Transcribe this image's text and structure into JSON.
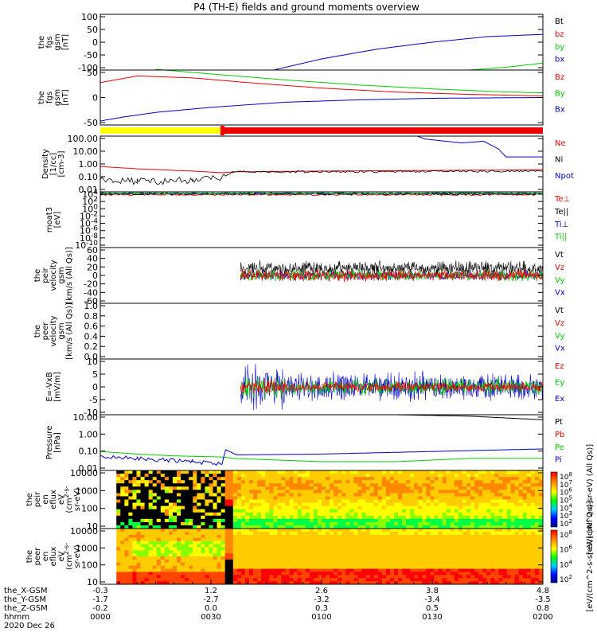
{
  "colors": {
    "black": "#000000",
    "red": "#ee0000",
    "green": "#00cc00",
    "blue": "#0000cc",
    "yellow": "#ffff00",
    "bar_red": "#ee0000"
  },
  "chart_data": {
    "type": "line",
    "title": "P4 (TH-E) fields and ground moments overview",
    "x_range_minutes": [
      0,
      120
    ],
    "mode_bar": {
      "segments": [
        {
          "start_min": 0,
          "end_min": 33,
          "color": "yellow",
          "meaning": "slow survey"
        },
        {
          "start_min": 33,
          "end_min": 120,
          "color": "red",
          "meaning": "fast survey"
        }
      ]
    },
    "panels": [
      {
        "id": "fgs_gsm",
        "ylabel": [
          "the",
          "fgs",
          "gsm",
          "[nT]"
        ],
        "yticks": [
          "100",
          "50",
          "0",
          "-50",
          "-100"
        ],
        "ylim": [
          -100,
          100
        ],
        "legend": [
          {
            "label": "Bt",
            "color": "black"
          },
          {
            "label": "bz",
            "color": "red"
          },
          {
            "label": "by",
            "color": "green"
          },
          {
            "label": "bx",
            "color": "blue"
          }
        ],
        "series": [
          {
            "name": "bx",
            "color": "blue",
            "points": [
              [
                47,
                -100
              ],
              [
                60,
                -60
              ],
              [
                75,
                -25
              ],
              [
                90,
                0
              ],
              [
                105,
                20
              ],
              [
                120,
                28
              ]
            ]
          },
          {
            "name": "by",
            "color": "green",
            "points": [
              [
                100,
                -100
              ],
              [
                110,
                -90
              ],
              [
                120,
                -75
              ]
            ]
          }
        ]
      },
      {
        "id": "fgs_gsm_dsl",
        "ylabel": [
          "the",
          "fgs",
          "gsm",
          "[nT]"
        ],
        "yticks": [
          "50",
          "0",
          "-50"
        ],
        "ylim": [
          -70,
          70
        ],
        "legend": [
          {
            "label": "Bz",
            "color": "red"
          },
          {
            "label": "By",
            "color": "green"
          },
          {
            "label": "Bx",
            "color": "blue"
          }
        ],
        "series": [
          {
            "name": "Bz",
            "color": "red",
            "points": [
              [
                0,
                38
              ],
              [
                10,
                55
              ],
              [
                25,
                50
              ],
              [
                40,
                38
              ],
              [
                60,
                24
              ],
              [
                80,
                14
              ],
              [
                100,
                8
              ],
              [
                120,
                4
              ]
            ]
          },
          {
            "name": "By",
            "color": "green",
            "points": [
              [
                15,
                72
              ],
              [
                30,
                60
              ],
              [
                50,
                45
              ],
              [
                70,
                32
              ],
              [
                90,
                22
              ],
              [
                110,
                14
              ],
              [
                120,
                12
              ]
            ]
          },
          {
            "name": "Bx",
            "color": "blue",
            "points": [
              [
                0,
                -60
              ],
              [
                6,
                -50
              ],
              [
                15,
                -38
              ],
              [
                30,
                -25
              ],
              [
                50,
                -12
              ],
              [
                70,
                -6
              ],
              [
                90,
                -2
              ],
              [
                120,
                0
              ]
            ]
          }
        ]
      },
      {
        "id": "density",
        "ylabel": [
          "Density",
          "[1/cc]",
          "[cm-3]"
        ],
        "yticks": [
          "100.00",
          "10.00",
          "1.00",
          "0.10",
          "0.01"
        ],
        "yscale": "log",
        "ylim": [
          0.01,
          200
        ],
        "legend": [
          {
            "label": "Ne",
            "color": "red"
          },
          {
            "label": "Ni",
            "color": "black"
          },
          {
            "label": "Npot",
            "color": "blue"
          }
        ],
        "series": [
          {
            "name": "Ne",
            "color": "red",
            "points": [
              [
                0,
                0.9
              ],
              [
                10,
                0.6
              ],
              [
                25,
                0.4
              ],
              [
                33,
                0.3
              ],
              [
                36,
                0.35
              ],
              [
                60,
                0.4
              ],
              [
                90,
                0.45
              ],
              [
                120,
                0.5
              ]
            ]
          },
          {
            "name": "Ni",
            "color": "black",
            "points": [
              [
                0,
                0.1
              ],
              [
                10,
                0.06
              ],
              [
                25,
                0.08
              ],
              [
                33,
                0.12
              ],
              [
                36,
                0.35
              ],
              [
                60,
                0.35
              ],
              [
                90,
                0.38
              ],
              [
                120,
                0.4
              ]
            ]
          },
          {
            "name": "Npot",
            "color": "blue",
            "points": [
              [
                86,
                200
              ],
              [
                88,
                120
              ],
              [
                92,
                90
              ],
              [
                98,
                60
              ],
              [
                104,
                80
              ],
              [
                108,
                20
              ],
              [
                110,
                5
              ],
              [
                120,
                5
              ]
            ]
          }
        ]
      },
      {
        "id": "temperature",
        "ylabel": [
          "moat3",
          "[eV]"
        ],
        "yticks": [
          "10^4",
          "10^2",
          "10^0",
          "10^-2",
          "10^-4",
          "10^-6",
          "10^-8",
          "10^-10"
        ],
        "yscale": "log",
        "legend": [
          {
            "label": "Te⊥",
            "color": "red"
          },
          {
            "label": "Te||",
            "color": "black"
          },
          {
            "label": "Ti⊥",
            "color": "blue"
          },
          {
            "label": "Ti||",
            "color": "green"
          }
        ],
        "series": [
          {
            "name": "Te⊥",
            "color": "red",
            "points": [
              [
                0,
                2000
              ],
              [
                120,
                2000
              ]
            ]
          },
          {
            "name": "Te||",
            "color": "black",
            "points": [
              [
                0,
                3000
              ],
              [
                120,
                3000
              ]
            ]
          },
          {
            "name": "Ti⊥",
            "color": "blue",
            "points": [
              [
                0,
                4000
              ],
              [
                120,
                4000
              ]
            ]
          },
          {
            "name": "Ti||",
            "color": "green",
            "points": [
              [
                0,
                5000
              ],
              [
                120,
                5000
              ]
            ]
          }
        ]
      },
      {
        "id": "peir_velocity",
        "ylabel": [
          "the",
          "peir",
          "velocity",
          "gsm",
          "[km/s (All Qs)]"
        ],
        "yticks": [
          "60",
          "40",
          "20",
          "0",
          "-20",
          "-40",
          "-60"
        ],
        "ylim": [
          -60,
          60
        ],
        "legend": [
          {
            "label": "Vt",
            "color": "black"
          },
          {
            "label": "Vz",
            "color": "red"
          },
          {
            "label": "Vy",
            "color": "green"
          },
          {
            "label": "Vx",
            "color": "blue"
          }
        ],
        "noisy_series": [
          {
            "name": "Vt",
            "color": "black",
            "start_min": 38,
            "end_min": 120,
            "center": 15,
            "amp": 18
          },
          {
            "name": "Vx",
            "color": "blue",
            "start_min": 38,
            "end_min": 120,
            "center": 0,
            "amp": 12
          },
          {
            "name": "Vy",
            "color": "green",
            "start_min": 38,
            "end_min": 120,
            "center": 0,
            "amp": 14
          },
          {
            "name": "Vz",
            "color": "red",
            "start_min": 38,
            "end_min": 120,
            "center": 0,
            "amp": 14
          }
        ]
      },
      {
        "id": "peer_velocity",
        "ylabel": [
          "the",
          "peer",
          "velocity",
          "gsm",
          "[km/s (All Qs)]"
        ],
        "yticks": [
          "1.0",
          "0.8",
          "0.6",
          "0.4",
          "0.2",
          "0.0"
        ],
        "ylim": [
          0,
          1
        ],
        "legend": [
          {
            "label": "Vt",
            "color": "black"
          },
          {
            "label": "Vz",
            "color": "red"
          },
          {
            "label": "Vy",
            "color": "green"
          },
          {
            "label": "Vx",
            "color": "blue"
          }
        ],
        "series": []
      },
      {
        "id": "efield",
        "ylabel": [
          "E=-VxB",
          "[mV/m]"
        ],
        "yticks": [
          "10",
          "5",
          "0",
          "-5",
          "-10"
        ],
        "ylim": [
          -12,
          12
        ],
        "legend": [
          {
            "label": "Ez",
            "color": "red"
          },
          {
            "label": "Ey",
            "color": "green"
          },
          {
            "label": "Ex",
            "color": "blue"
          }
        ],
        "noisy_series": [
          {
            "name": "Ex",
            "color": "blue",
            "start_min": 38,
            "end_min": 120,
            "center": 0,
            "amp": 7
          },
          {
            "name": "Ey",
            "color": "green",
            "start_min": 38,
            "end_min": 120,
            "center": 0,
            "amp": 4
          },
          {
            "name": "Ez",
            "color": "red",
            "start_min": 38,
            "end_min": 120,
            "center": 0,
            "amp": 2.5
          }
        ]
      },
      {
        "id": "pressure",
        "ylabel": [
          "Pressure",
          "[nPa]"
        ],
        "yticks": [
          "10.00",
          "1.00",
          "0.10",
          "0.01"
        ],
        "yscale": "log",
        "ylim": [
          0.003,
          20
        ],
        "legend": [
          {
            "label": "Pt",
            "color": "black"
          },
          {
            "label": "Pb",
            "color": "red"
          },
          {
            "label": "Pe",
            "color": "green"
          },
          {
            "label": "Pi",
            "color": "blue"
          }
        ],
        "series": [
          {
            "name": "Pt",
            "color": "black",
            "points": [
              [
                80,
                20
              ],
              [
                100,
                16
              ],
              [
                120,
                9
              ]
            ]
          },
          {
            "name": "Pe",
            "color": "green",
            "points": [
              [
                0,
                0.06
              ],
              [
                10,
                0.04
              ],
              [
                20,
                0.03
              ],
              [
                33,
                0.025
              ],
              [
                36,
                0.02
              ],
              [
                60,
                0.012
              ],
              [
                80,
                0.012
              ],
              [
                100,
                0.02
              ],
              [
                120,
                0.02
              ]
            ]
          },
          {
            "name": "Pi",
            "color": "blue",
            "points": [
              [
                0,
                0.03
              ],
              [
                10,
                0.02
              ],
              [
                25,
                0.012
              ],
              [
                33,
                0.008
              ],
              [
                34,
                0.08
              ],
              [
                37,
                0.035
              ],
              [
                60,
                0.04
              ],
              [
                90,
                0.06
              ],
              [
                120,
                0.09
              ]
            ]
          }
        ]
      },
      {
        "id": "peir_spec",
        "type": "heatmap",
        "ylabel": [
          "the",
          "peir",
          "en",
          "eflux",
          "eV",
          "(cm^2-s-",
          "sr-eV)"
        ],
        "yticks": [
          "10000",
          "1000",
          "100",
          "10"
        ],
        "colorbar_label": "[eV/(cm^2-s-sr-eV) (All Qs)]",
        "colorbar_ticks": [
          "10^8",
          "10^7",
          "10^6",
          "10^5",
          "10^4",
          "10^3",
          "10^2"
        ]
      },
      {
        "id": "peer_spec",
        "type": "heatmap",
        "ylabel": [
          "the",
          "peer",
          "en",
          "eflux",
          "eV",
          "(cm^2-s-",
          "sr-eV)"
        ],
        "yticks": [
          "10000",
          "1000",
          "100",
          "10"
        ],
        "colorbar_label": "[eV/(cm^2-s-sr-eV) (All Qs)]",
        "colorbar_ticks": [
          "10^8",
          "10^6",
          "10^4",
          "10^2"
        ]
      }
    ],
    "time_axis": {
      "row_labels": [
        "the_X-GSM",
        "the_Y-GSM",
        "the_Z-GSM",
        "hhmm",
        "2020 Dec 26"
      ],
      "ticks": [
        {
          "min": 0,
          "values": [
            "-0.3",
            "-1.7",
            "-0.2",
            "0000"
          ]
        },
        {
          "min": 30,
          "values": [
            "1.2",
            "-2.7",
            "0.0",
            "0030"
          ]
        },
        {
          "min": 60,
          "values": [
            "2.6",
            "-3.2",
            "0.3",
            "0100"
          ]
        },
        {
          "min": 90,
          "values": [
            "3.8",
            "-3.4",
            "0.5",
            "0130"
          ]
        },
        {
          "min": 120,
          "values": [
            "4.8",
            "-3.5",
            "0.8",
            "0200"
          ]
        }
      ]
    }
  }
}
